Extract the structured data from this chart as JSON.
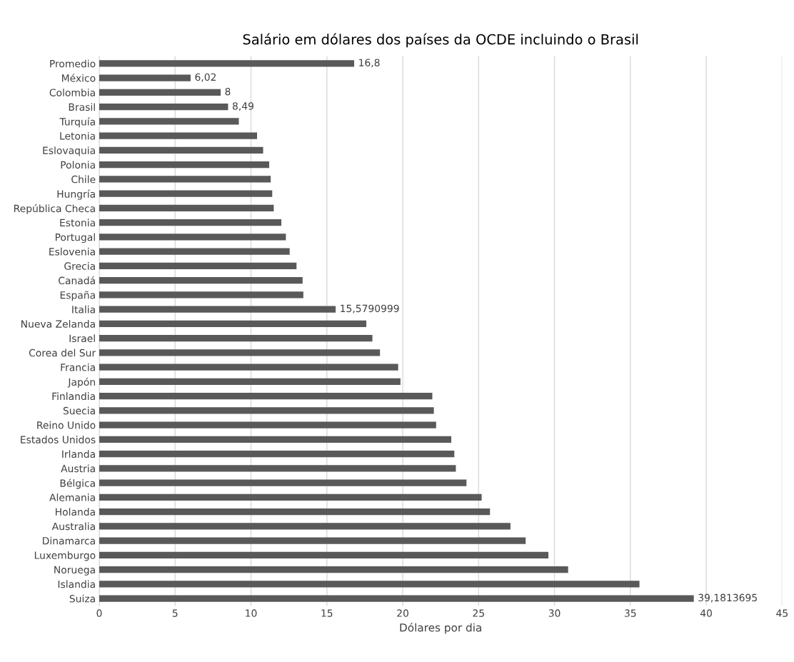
{
  "chart_data": {
    "type": "bar",
    "orientation": "horizontal",
    "title": "Salário em dólares dos países da OCDE incluindo o Brasil",
    "xlabel": "Dólares por dia",
    "categories": [
      "Promedio",
      "México",
      "Colombia",
      "Brasil",
      "Turquía",
      "Letonia",
      "Eslovaquia",
      "Polonia",
      "Chile",
      "Hungría",
      "República Checa",
      "Estonia",
      "Portugal",
      "Eslovenia",
      "Grecia",
      "Canadá",
      "España",
      "Italia",
      "Nueva Zelanda",
      "Israel",
      "Corea del Sur",
      "Francia",
      "Japón",
      "Finlandia",
      "Suecia",
      "Reino Unido",
      "Estados Unidos",
      "Irlanda",
      "Austria",
      "Bélgica",
      "Alemania",
      "Holanda",
      "Australia",
      "Dinamarca",
      "Luxemburgo",
      "Noruega",
      "Islandia",
      "Suiza"
    ],
    "values": [
      16.8,
      6.02,
      8,
      8.49,
      9.2,
      10.4,
      10.8,
      11.2,
      11.3,
      11.4,
      11.5,
      12.0,
      12.3,
      12.55,
      13.0,
      13.4,
      13.45,
      15.5790999,
      17.6,
      18.0,
      18.5,
      19.7,
      19.85,
      21.95,
      22.05,
      22.2,
      23.2,
      23.4,
      23.5,
      24.2,
      25.2,
      25.75,
      27.1,
      28.1,
      29.6,
      30.9,
      35.6,
      39.1813695
    ],
    "value_labels": [
      "16,8",
      "6,02",
      "8",
      "8,49",
      null,
      null,
      null,
      null,
      null,
      null,
      null,
      null,
      null,
      null,
      null,
      null,
      null,
      "15,5790999",
      null,
      null,
      null,
      null,
      null,
      null,
      null,
      null,
      null,
      null,
      null,
      null,
      null,
      null,
      null,
      null,
      null,
      null,
      null,
      "39,1813695"
    ],
    "color": "#595959",
    "xlim": [
      0,
      45
    ],
    "xticks": [
      0,
      5,
      10,
      15,
      20,
      25,
      30,
      35,
      40,
      45
    ],
    "grid": "x"
  }
}
